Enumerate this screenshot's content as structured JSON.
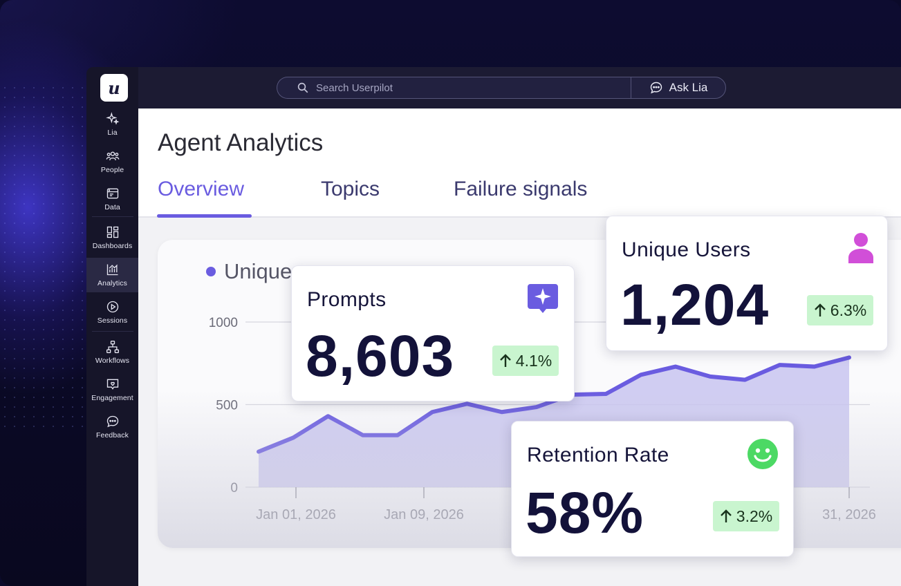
{
  "search": {
    "placeholder": "Search Userpilot"
  },
  "ask": {
    "label": "Ask Lia"
  },
  "logo": {
    "letter": "u"
  },
  "sidebar": {
    "items": [
      {
        "label": "Lia",
        "icon": "sparkle-icon"
      },
      {
        "label": "People",
        "icon": "people-icon"
      },
      {
        "label": "Data",
        "icon": "data-icon"
      },
      {
        "label": "Dashboards",
        "icon": "dashboards-icon"
      },
      {
        "label": "Analytics",
        "icon": "analytics-icon"
      },
      {
        "label": "Sessions",
        "icon": "play-icon"
      },
      {
        "label": "Workflows",
        "icon": "workflow-icon"
      },
      {
        "label": "Engagement",
        "icon": "engagement-icon"
      },
      {
        "label": "Feedback",
        "icon": "feedback-icon"
      }
    ],
    "active": "Analytics"
  },
  "page": {
    "title": "Agent Analytics"
  },
  "tabs": [
    {
      "label": "Overview",
      "active": true
    },
    {
      "label": "Topics",
      "active": false
    },
    {
      "label": "Failure signals",
      "active": false
    }
  ],
  "chart": {
    "legend_partial": "Unique"
  },
  "chart_data": {
    "type": "area",
    "series": [
      {
        "name": "Unique",
        "values": [
          215,
          300,
          430,
          315,
          315,
          455,
          505,
          455,
          485,
          560,
          565,
          680,
          730,
          670,
          650,
          740,
          730,
          785
        ]
      }
    ],
    "x_tick_labels": [
      "Jan 01, 2026",
      "Jan 09, 2026",
      "31, 2026"
    ],
    "ylim": [
      0,
      1000
    ],
    "y_ticks": [
      0,
      500,
      1000
    ],
    "grid": true,
    "color": "#6a5ce0",
    "fill_color": "#c8c4f0"
  },
  "cards": {
    "prompts": {
      "label": "Prompts",
      "value": "8,603",
      "change": "4.1%",
      "icon": "sparkle-chat-icon"
    },
    "unique_users": {
      "label": "Unique Users",
      "value": "1,204",
      "change": "6.3%",
      "icon": "user-icon"
    },
    "retention": {
      "label": "Retention Rate",
      "value": "58%",
      "change": "3.2%",
      "icon": "smiley-icon"
    }
  },
  "colors": {
    "accent": "#6a5ce0",
    "positive_bg": "#c9f5cf",
    "user_icon": "#d14fd8",
    "smiley": "#4cd964"
  }
}
